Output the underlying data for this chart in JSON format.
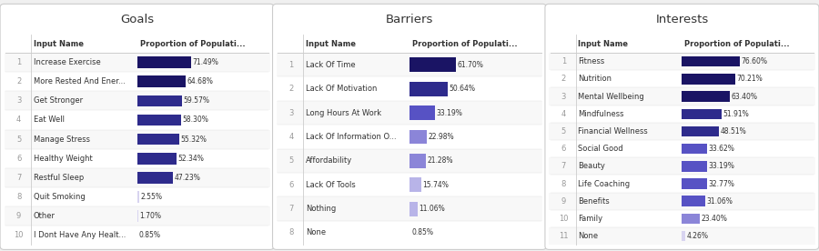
{
  "panels": [
    {
      "title": "Goals",
      "col_header_left": "Input Name",
      "col_header_right": "Proportion of Populati...",
      "rows": [
        {
          "rank": 1,
          "name": "Increase Exercise",
          "value": 71.49
        },
        {
          "rank": 2,
          "name": "More Rested And Ener...",
          "value": 64.68
        },
        {
          "rank": 3,
          "name": "Get Stronger",
          "value": 59.57
        },
        {
          "rank": 4,
          "name": "Eat Well",
          "value": 58.3
        },
        {
          "rank": 5,
          "name": "Manage Stress",
          "value": 55.32
        },
        {
          "rank": 6,
          "name": "Healthy Weight",
          "value": 52.34
        },
        {
          "rank": 7,
          "name": "Restful Sleep",
          "value": 47.23
        },
        {
          "rank": 8,
          "name": "Quit Smoking",
          "value": 2.55
        },
        {
          "rank": 9,
          "name": "Other",
          "value": 1.7
        },
        {
          "rank": 10,
          "name": "I Dont Have Any Healt...",
          "value": 0.85
        }
      ]
    },
    {
      "title": "Barriers",
      "col_header_left": "Input Name",
      "col_header_right": "Proportion of Populati...",
      "rows": [
        {
          "rank": 1,
          "name": "Lack Of Time",
          "value": 61.7
        },
        {
          "rank": 2,
          "name": "Lack Of Motivation",
          "value": 50.64
        },
        {
          "rank": 3,
          "name": "Long Hours At Work",
          "value": 33.19
        },
        {
          "rank": 4,
          "name": "Lack Of Information O...",
          "value": 22.98
        },
        {
          "rank": 5,
          "name": "Affordability",
          "value": 21.28
        },
        {
          "rank": 6,
          "name": "Lack Of Tools",
          "value": 15.74
        },
        {
          "rank": 7,
          "name": "Nothing",
          "value": 11.06
        },
        {
          "rank": 8,
          "name": "None",
          "value": 0.85
        }
      ]
    },
    {
      "title": "Interests",
      "col_header_left": "Input Name",
      "col_header_right": "Proportion of Populati...",
      "rows": [
        {
          "rank": 1,
          "name": "Fitness",
          "value": 76.6
        },
        {
          "rank": 2,
          "name": "Nutrition",
          "value": 70.21
        },
        {
          "rank": 3,
          "name": "Mental Wellbeing",
          "value": 63.4
        },
        {
          "rank": 4,
          "name": "Mindfulness",
          "value": 51.91
        },
        {
          "rank": 5,
          "name": "Financial Wellness",
          "value": 48.51
        },
        {
          "rank": 6,
          "name": "Social Good",
          "value": 33.62
        },
        {
          "rank": 7,
          "name": "Beauty",
          "value": 33.19
        },
        {
          "rank": 8,
          "name": "Life Coaching",
          "value": 32.77
        },
        {
          "rank": 9,
          "name": "Benefits",
          "value": 31.06
        },
        {
          "rank": 10,
          "name": "Family",
          "value": 23.4
        },
        {
          "rank": 11,
          "name": "None",
          "value": 4.26
        }
      ]
    }
  ],
  "background_color": "#f0f0f0",
  "panel_bg_color": "#ffffff",
  "title_fontsize": 9.5,
  "header_fontsize": 6.0,
  "row_fontsize": 6.0,
  "divider_color": "#cccccc",
  "text_color": "#333333",
  "rank_text_color": "#999999",
  "bar_colors": {
    "high": "#1a1464",
    "mid_hi": "#2e2b8c",
    "mid": "#5752c4",
    "mid_lo": "#8b85d8",
    "lo": "#b8b4e8",
    "vlo": "#d8d4f0"
  },
  "bar_thresholds": [
    60,
    45,
    30,
    18,
    8
  ]
}
